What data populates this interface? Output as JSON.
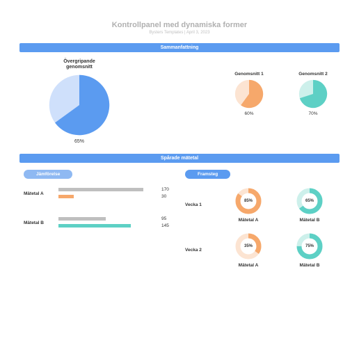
{
  "header": {
    "title": "Kontrollpanel med dynamiska former",
    "subtitle": "Bysters Templates  |  April 3, 2023"
  },
  "colors": {
    "blue": "#5b9bf0",
    "blue_light": "#cfe0fb",
    "orange": "#f6a86b",
    "orange_light": "#fce4d2",
    "teal": "#5dd0c5",
    "teal_light": "#cdf0eb",
    "gray_bar": "#bfbfbf"
  },
  "sections": {
    "summary": "Sammanfattning",
    "tracked": "Spårade mätetal"
  },
  "summary": {
    "big": {
      "title": "Övergripande\ngenomsnitt",
      "value": 65,
      "label": "65%",
      "fill": "#5b9bf0",
      "rest": "#cfe0fb"
    },
    "small": [
      {
        "title": "Genomsnitt 1",
        "value": 60,
        "label": "60%",
        "fill": "#f6a86b",
        "rest": "#fce4d2"
      },
      {
        "title": "Genomsnitt 2",
        "value": 70,
        "label": "70%",
        "fill": "#5dd0c5",
        "rest": "#cdf0eb"
      }
    ]
  },
  "comparison": {
    "pill": "Jämförelse",
    "pill_color": "#8fb9f2",
    "max": 200,
    "metrics": [
      {
        "name": "Mätetal A",
        "bars": [
          {
            "value": 170,
            "color": "#bfbfbf"
          },
          {
            "value": 30,
            "color": "#f6a86b"
          }
        ]
      },
      {
        "name": "Mätetal B",
        "bars": [
          {
            "value": 95,
            "color": "#bfbfbf"
          },
          {
            "value": 145,
            "color": "#5dd0c5"
          }
        ]
      }
    ]
  },
  "progress": {
    "pill": "Framsteg",
    "pill_color": "#5b9bf0",
    "weeks": [
      {
        "name": "Vecka 1",
        "donuts": [
          {
            "value": 85,
            "label": "85%",
            "metric": "Mätetal A",
            "fill": "#f6a86b",
            "rest": "#fce4d2"
          },
          {
            "value": 65,
            "label": "65%",
            "metric": "Mätetal B",
            "fill": "#5dd0c5",
            "rest": "#cdf0eb"
          }
        ]
      },
      {
        "name": "Vecka 2",
        "donuts": [
          {
            "value": 35,
            "label": "35%",
            "metric": "Mätetal A",
            "fill": "#f6a86b",
            "rest": "#fce4d2"
          },
          {
            "value": 75,
            "label": "75%",
            "metric": "Mätetal B",
            "fill": "#5dd0c5",
            "rest": "#cdf0eb"
          }
        ]
      }
    ]
  }
}
